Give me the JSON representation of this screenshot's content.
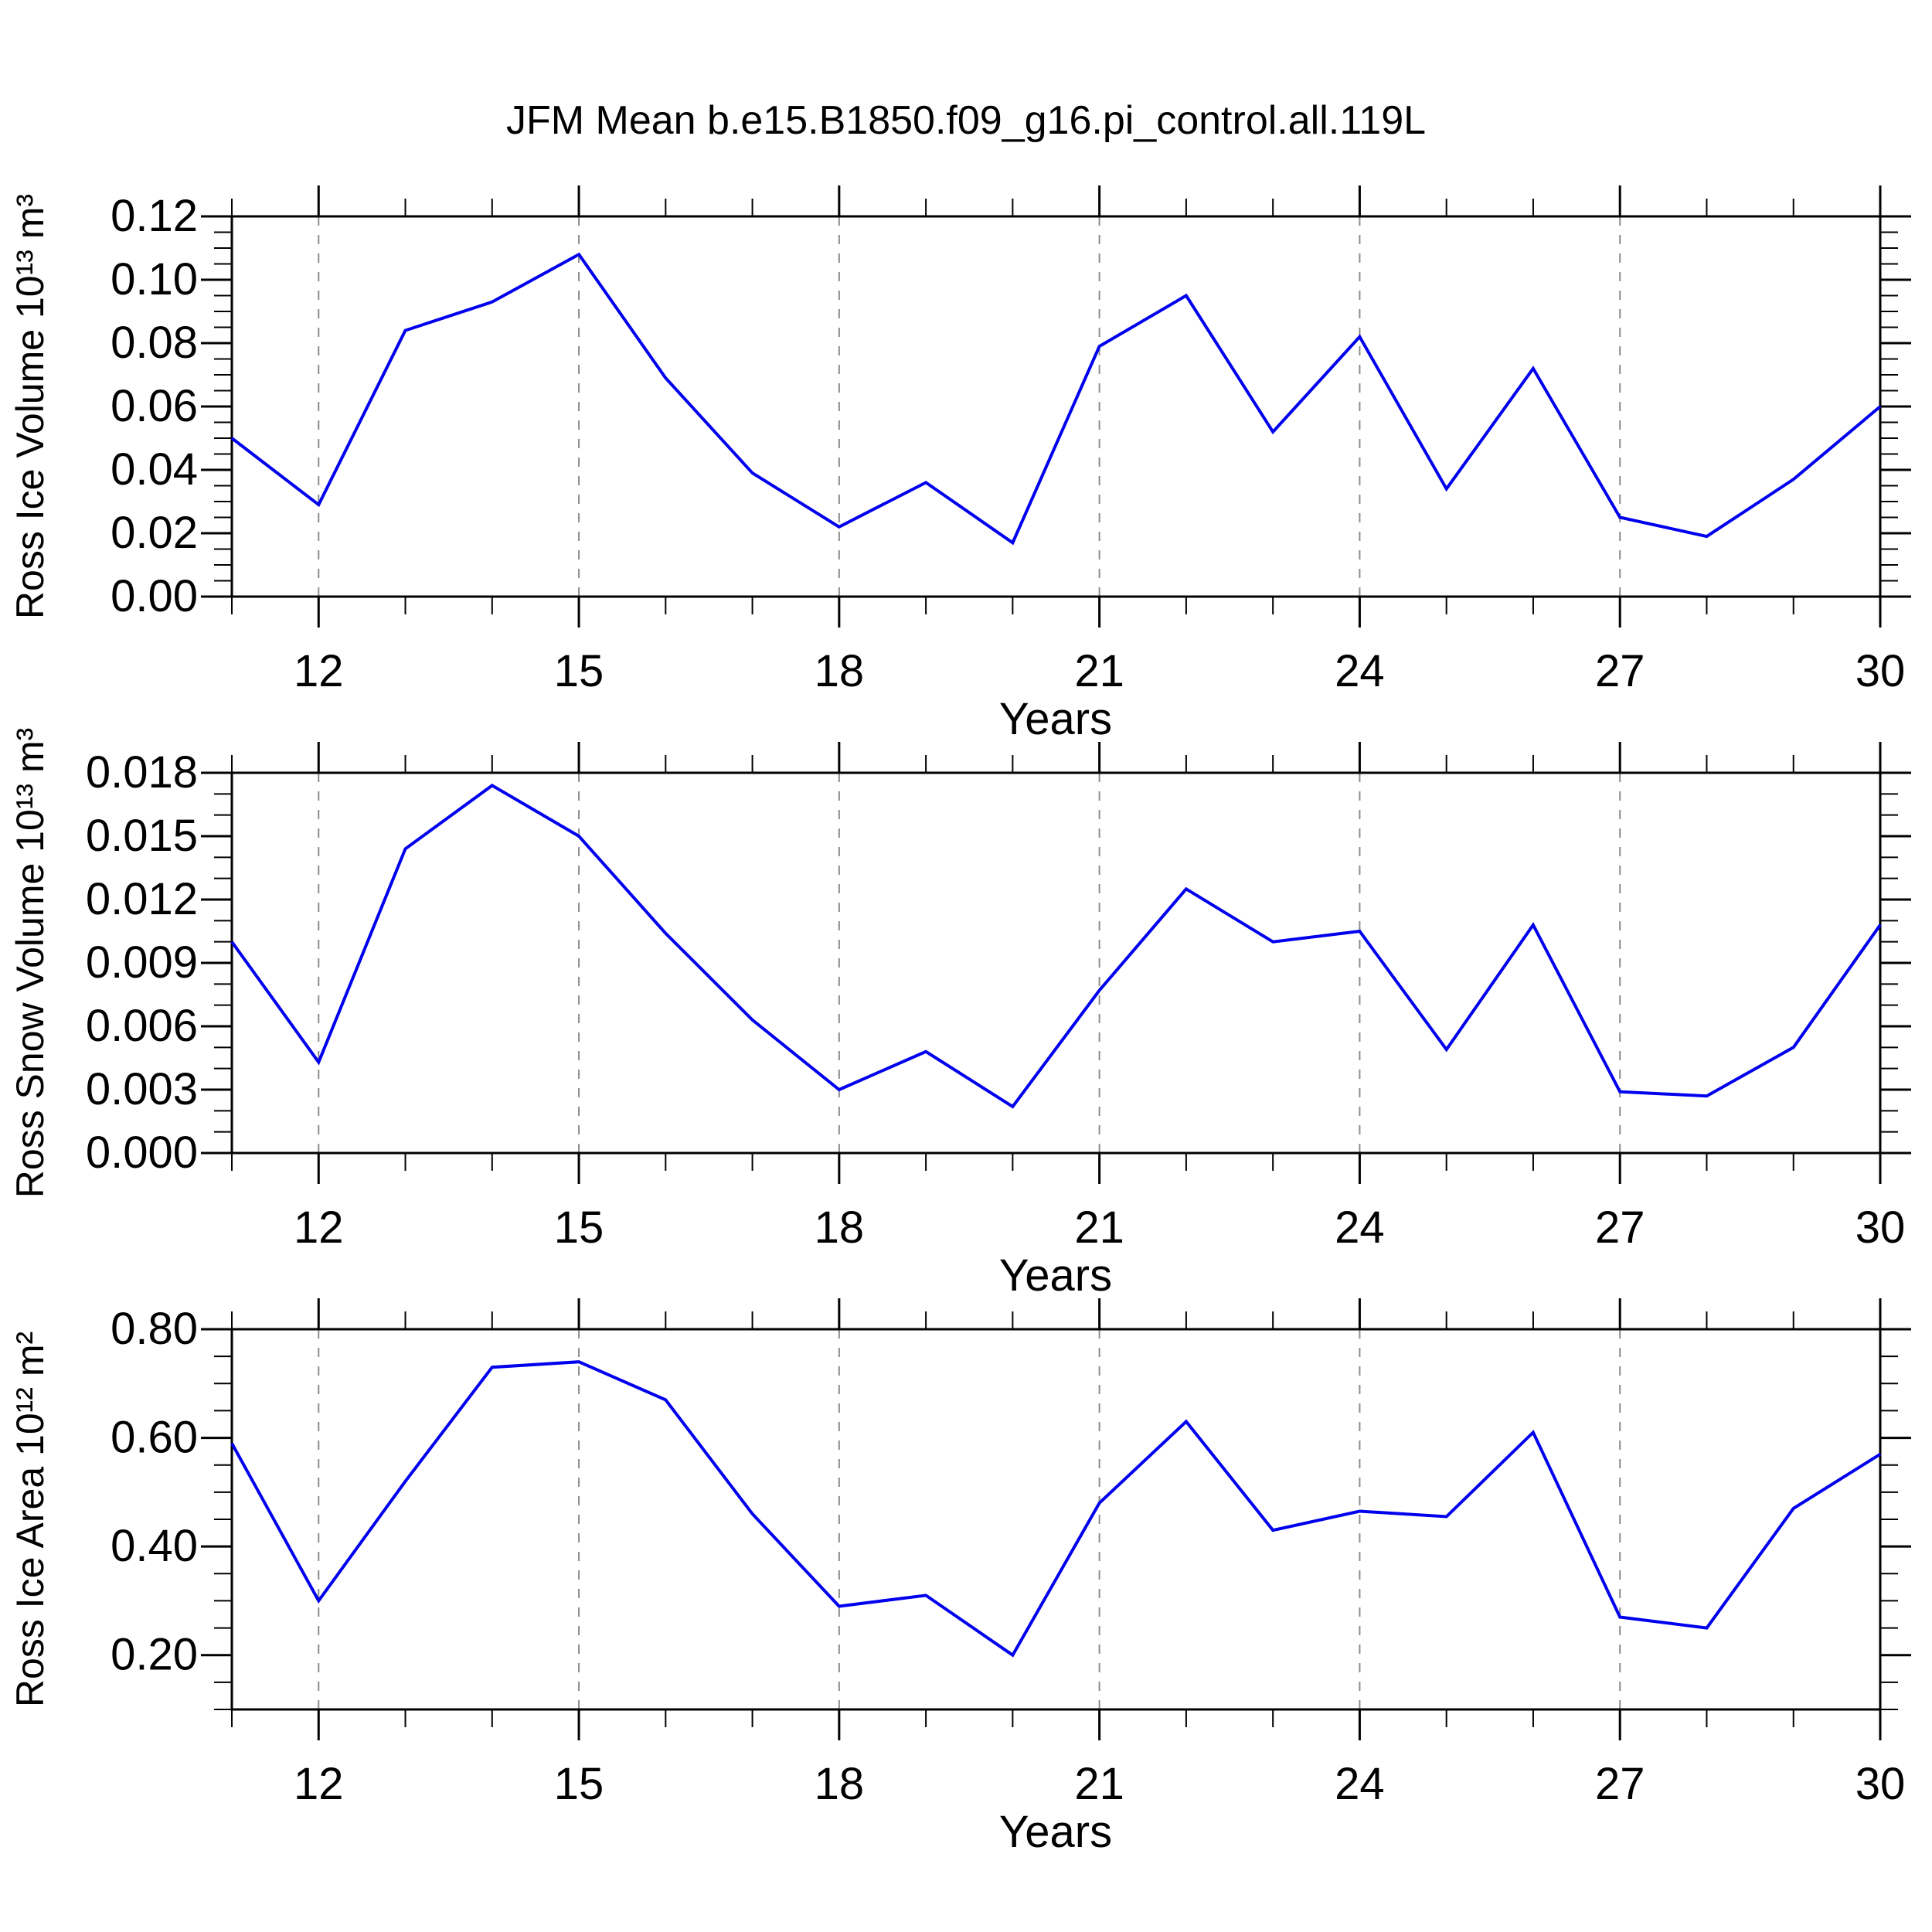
{
  "title": "JFM Mean b.e15.B1850.f09_g16.pi_control.all.119L",
  "colors": {
    "line": "#0000ee",
    "grid": "#8c8c8c",
    "axis": "#000000",
    "text": "#000000",
    "background": "#ffffff"
  },
  "chart_data": [
    {
      "type": "line",
      "ylabel": "Ross Ice Volume 10¹³ m³",
      "xlabel": "Years",
      "x": [
        11,
        12,
        13,
        14,
        15,
        16,
        17,
        18,
        19,
        20,
        21,
        22,
        23,
        24,
        25,
        26,
        27,
        28,
        29,
        30
      ],
      "values": [
        0.05,
        0.029,
        0.084,
        0.093,
        0.108,
        0.069,
        0.039,
        0.022,
        0.036,
        0.017,
        0.079,
        0.095,
        0.052,
        0.082,
        0.034,
        0.072,
        0.025,
        0.019,
        0.037,
        0.06
      ],
      "xlim": [
        11,
        30
      ],
      "ylim": [
        0,
        0.12
      ],
      "xticks": [
        12,
        15,
        18,
        21,
        24,
        27,
        30
      ],
      "xtick_labels": [
        "12",
        "15",
        "18",
        "21",
        "24",
        "27",
        "30"
      ],
      "xminor_step": 1,
      "grid_x": [
        12,
        15,
        18,
        21,
        24,
        27
      ],
      "yticks": [
        0,
        0.02,
        0.04,
        0.06,
        0.08,
        0.1,
        0.12
      ],
      "ytick_labels": [
        "0.00",
        "0.02",
        "0.04",
        "0.06",
        "0.08",
        "0.10",
        "0.12"
      ],
      "yminor_step": 0.005
    },
    {
      "type": "line",
      "ylabel": "Ross Snow Volume 10¹³ m³",
      "xlabel": "Years",
      "x": [
        11,
        12,
        13,
        14,
        15,
        16,
        17,
        18,
        19,
        20,
        21,
        22,
        23,
        24,
        25,
        26,
        27,
        28,
        29,
        30
      ],
      "values": [
        0.01,
        0.0043,
        0.0144,
        0.0174,
        0.015,
        0.0104,
        0.0063,
        0.003,
        0.0048,
        0.0022,
        0.0077,
        0.0125,
        0.01,
        0.0105,
        0.0049,
        0.0108,
        0.0029,
        0.0027,
        0.005,
        0.0108
      ],
      "xlim": [
        11,
        30
      ],
      "ylim": [
        0,
        0.018
      ],
      "xticks": [
        12,
        15,
        18,
        21,
        24,
        27,
        30
      ],
      "xtick_labels": [
        "12",
        "15",
        "18",
        "21",
        "24",
        "27",
        "30"
      ],
      "xminor_step": 1,
      "grid_x": [
        12,
        15,
        18,
        21,
        24,
        27
      ],
      "yticks": [
        0,
        0.003,
        0.006,
        0.009,
        0.012,
        0.015,
        0.018
      ],
      "ytick_labels": [
        "0.000",
        "0.003",
        "0.006",
        "0.009",
        "0.012",
        "0.015",
        "0.018"
      ],
      "yminor_step": 0.001
    },
    {
      "type": "line",
      "ylabel": "Ross Ice Area 10¹² m²",
      "xlabel": "Years",
      "x": [
        11,
        12,
        13,
        14,
        15,
        16,
        17,
        18,
        19,
        20,
        21,
        22,
        23,
        24,
        25,
        26,
        27,
        28,
        29,
        30
      ],
      "values": [
        0.59,
        0.3,
        0.52,
        0.73,
        0.74,
        0.67,
        0.46,
        0.29,
        0.31,
        0.2,
        0.48,
        0.63,
        0.43,
        0.465,
        0.455,
        0.61,
        0.27,
        0.25,
        0.47,
        0.57
      ],
      "xlim": [
        11,
        30
      ],
      "ylim": [
        0.1,
        0.8
      ],
      "xticks": [
        12,
        15,
        18,
        21,
        24,
        27,
        30
      ],
      "xtick_labels": [
        "12",
        "15",
        "18",
        "21",
        "24",
        "27",
        "30"
      ],
      "xminor_step": 1,
      "grid_x": [
        12,
        15,
        18,
        21,
        24,
        27
      ],
      "yticks": [
        0.2,
        0.4,
        0.6,
        0.8
      ],
      "ytick_labels": [
        "0.20",
        "0.40",
        "0.60",
        "0.80"
      ],
      "yminor_step": 0.05
    }
  ]
}
